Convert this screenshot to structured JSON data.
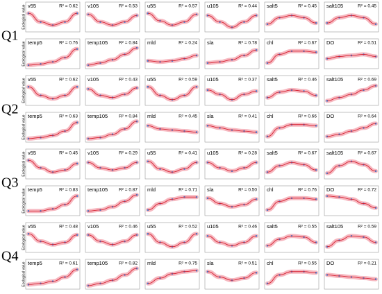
{
  "y_label": "Ecological value",
  "quarters": [
    {
      "label": "Q1",
      "panels": [
        {
          "name": "v55",
          "r2": "R² = 0.62",
          "curve": [
            0.8,
            0.4,
            0.25,
            0.4,
            0.8
          ]
        },
        {
          "name": "v105",
          "r2": "R² = 0.53",
          "curve": [
            0.75,
            0.4,
            0.25,
            0.4,
            0.7
          ]
        },
        {
          "name": "u55",
          "r2": "R² = 0.57",
          "curve": [
            0.8,
            0.45,
            0.25,
            0.4,
            0.75
          ]
        },
        {
          "name": "u105",
          "r2": "R² = 0.44",
          "curve": [
            0.7,
            0.4,
            0.15,
            0.4,
            0.7
          ]
        },
        {
          "name": "salt5",
          "r2": "R² = 0.45",
          "curve": [
            0.3,
            0.6,
            0.7,
            0.6,
            0.35
          ]
        },
        {
          "name": "salt105",
          "r2": "R² = 0.45",
          "curve": [
            0.35,
            0.6,
            0.7,
            0.6,
            0.3
          ]
        },
        {
          "name": "temp5",
          "r2": "R² = 0.76",
          "curve": [
            0.1,
            0.15,
            0.25,
            0.45,
            0.85
          ]
        },
        {
          "name": "temp105",
          "r2": "R² = 0.84",
          "curve": [
            0.1,
            0.2,
            0.35,
            0.6,
            0.9
          ]
        },
        {
          "name": "mld",
          "r2": "R² = 0.24",
          "curve": [
            0.3,
            0.25,
            0.3,
            0.4,
            0.55
          ]
        },
        {
          "name": "sla",
          "r2": "R² = 0.78",
          "curve": [
            0.2,
            0.25,
            0.35,
            0.55,
            0.8
          ]
        },
        {
          "name": "chl",
          "r2": "R² = 0.67",
          "curve": [
            0.2,
            0.6,
            0.75,
            0.75,
            0.7
          ]
        },
        {
          "name": "DO",
          "r2": "R² = 0.51",
          "curve": [
            0.4,
            0.5,
            0.55,
            0.6,
            0.5
          ]
        }
      ]
    },
    {
      "label": "Q2",
      "panels": [
        {
          "name": "v55",
          "r2": "R² = 0.62",
          "curve": [
            0.8,
            0.4,
            0.25,
            0.4,
            0.8
          ]
        },
        {
          "name": "v105",
          "r2": "R² = 0.43",
          "curve": [
            0.7,
            0.4,
            0.3,
            0.45,
            0.75
          ]
        },
        {
          "name": "u55",
          "r2": "R² = 0.59",
          "curve": [
            0.8,
            0.4,
            0.2,
            0.4,
            0.8
          ]
        },
        {
          "name": "u105",
          "r2": "R² = 0.37",
          "curve": [
            0.65,
            0.45,
            0.2,
            0.45,
            0.6
          ]
        },
        {
          "name": "salt5",
          "r2": "R² = 0.46",
          "curve": [
            0.3,
            0.55,
            0.65,
            0.6,
            0.4
          ]
        },
        {
          "name": "salt105",
          "r2": "R² = 0.69",
          "curve": [
            0.15,
            0.3,
            0.45,
            0.65,
            0.85
          ]
        },
        {
          "name": "temp5",
          "r2": "R² = 0.63",
          "curve": [
            0.1,
            0.15,
            0.25,
            0.45,
            0.85
          ]
        },
        {
          "name": "temp105",
          "r2": "R² = 0.84",
          "curve": [
            0.1,
            0.15,
            0.3,
            0.55,
            0.9
          ]
        },
        {
          "name": "mld",
          "r2": "R² = 0.45",
          "curve": [
            0.7,
            0.55,
            0.5,
            0.45,
            0.4
          ]
        },
        {
          "name": "sla",
          "r2": "R² = 0.41",
          "curve": [
            0.7,
            0.6,
            0.5,
            0.45,
            0.4
          ]
        },
        {
          "name": "chl",
          "r2": "R² = 0.66",
          "curve": [
            0.2,
            0.6,
            0.75,
            0.75,
            0.7
          ]
        },
        {
          "name": "DO",
          "r2": "R² = 0.64",
          "curve": [
            0.2,
            0.3,
            0.45,
            0.6,
            0.8
          ]
        }
      ]
    },
    {
      "label": "Q3",
      "panels": [
        {
          "name": "v55",
          "r2": "R² = 0.45",
          "curve": [
            0.8,
            0.45,
            0.25,
            0.35,
            0.65
          ]
        },
        {
          "name": "v105",
          "r2": "R² = 0.29",
          "curve": [
            0.7,
            0.45,
            0.35,
            0.45,
            0.7
          ]
        },
        {
          "name": "u55",
          "r2": "R² = 0.41",
          "curve": [
            0.75,
            0.4,
            0.25,
            0.4,
            0.7
          ]
        },
        {
          "name": "u105",
          "r2": "R² = 0.28",
          "curve": [
            0.7,
            0.45,
            0.3,
            0.45,
            0.7
          ]
        },
        {
          "name": "salt5",
          "r2": "R² = 0.67",
          "curve": [
            0.25,
            0.55,
            0.7,
            0.6,
            0.35
          ]
        },
        {
          "name": "salt105",
          "r2": "R² = 0.67",
          "curve": [
            0.2,
            0.55,
            0.75,
            0.6,
            0.3
          ]
        },
        {
          "name": "temp5",
          "r2": "R² = 0.83",
          "curve": [
            0.15,
            0.15,
            0.25,
            0.45,
            0.85
          ]
        },
        {
          "name": "temp105",
          "r2": "R² = 0.87",
          "curve": [
            0.15,
            0.2,
            0.35,
            0.6,
            0.9
          ]
        },
        {
          "name": "mld",
          "r2": "R² = 0.71",
          "curve": [
            0.2,
            0.5,
            0.7,
            0.8,
            0.8
          ]
        },
        {
          "name": "sla",
          "r2": "R² = 0.50",
          "curve": [
            0.75,
            0.5,
            0.35,
            0.45,
            0.7
          ]
        },
        {
          "name": "chl",
          "r2": "R² = 0.76",
          "curve": [
            0.2,
            0.6,
            0.75,
            0.75,
            0.7
          ]
        },
        {
          "name": "DO",
          "r2": "R² = 0.72",
          "curve": [
            0.85,
            0.8,
            0.7,
            0.5,
            0.3
          ]
        }
      ]
    },
    {
      "label": "Q4",
      "panels": [
        {
          "name": "v55",
          "r2": "R² = 0.48",
          "curve": [
            0.8,
            0.45,
            0.3,
            0.4,
            0.75
          ]
        },
        {
          "name": "v105",
          "r2": "R² = 0.46",
          "curve": [
            0.75,
            0.45,
            0.3,
            0.45,
            0.75
          ]
        },
        {
          "name": "u55",
          "r2": "R² = 0.52",
          "curve": [
            0.8,
            0.4,
            0.2,
            0.4,
            0.8
          ]
        },
        {
          "name": "u105",
          "r2": "R² = 0.46",
          "curve": [
            0.7,
            0.4,
            0.25,
            0.4,
            0.7
          ]
        },
        {
          "name": "salt5",
          "r2": "R² = 0.55",
          "curve": [
            0.25,
            0.55,
            0.7,
            0.65,
            0.4
          ]
        },
        {
          "name": "salt105",
          "r2": "R² = 0.59",
          "curve": [
            0.2,
            0.5,
            0.7,
            0.65,
            0.4
          ]
        },
        {
          "name": "temp5",
          "r2": "R² = 0.61",
          "curve": [
            0.15,
            0.2,
            0.3,
            0.5,
            0.85
          ]
        },
        {
          "name": "temp105",
          "r2": "R² = 0.82",
          "curve": [
            0.1,
            0.2,
            0.35,
            0.6,
            0.9
          ]
        },
        {
          "name": "mld",
          "r2": "R² = 0.75",
          "curve": [
            0.2,
            0.45,
            0.65,
            0.75,
            0.8
          ]
        },
        {
          "name": "sla",
          "r2": "R² = 0.51",
          "curve": [
            0.75,
            0.5,
            0.35,
            0.45,
            0.7
          ]
        },
        {
          "name": "chl",
          "r2": "R² = 0.55",
          "curve": [
            0.2,
            0.6,
            0.75,
            0.75,
            0.7
          ]
        },
        {
          "name": "DO",
          "r2": "R² = 0.21",
          "curve": [
            0.6,
            0.55,
            0.5,
            0.45,
            0.4
          ]
        }
      ]
    }
  ]
}
